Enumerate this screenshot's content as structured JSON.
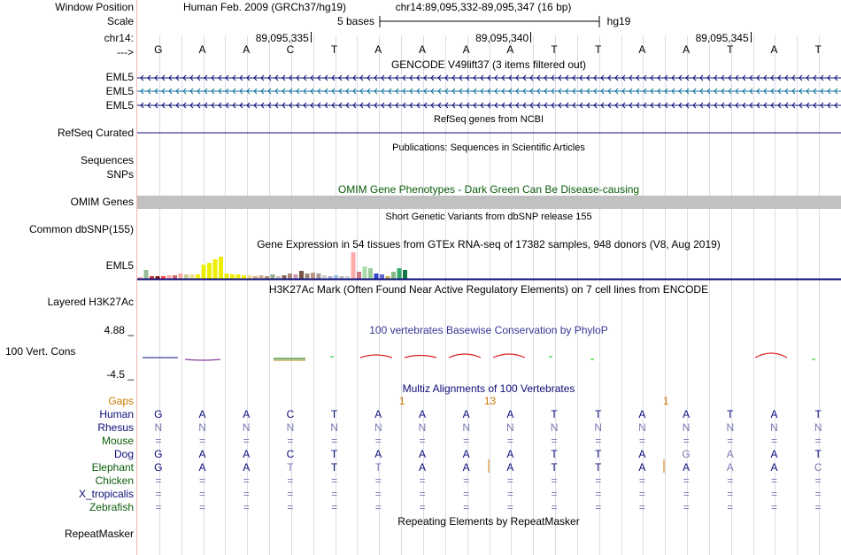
{
  "header": {
    "window_position_label": "Window Position",
    "assembly": "Human Feb. 2009 (GRCh37/hg19)",
    "position": "chr14:89,095,332-89,095,347 (16 bp)",
    "scale_label": "Scale",
    "scale_text": "5 bases",
    "scale_db": "hg19",
    "chrom_label": "chr14:",
    "coords": [
      "89,095,335",
      "89,095,340",
      "89,095,345"
    ],
    "strand_label": "--->",
    "sequence": [
      "G",
      "A",
      "A",
      "C",
      "T",
      "A",
      "A",
      "A",
      "A",
      "T",
      "T",
      "A",
      "A",
      "T",
      "A",
      "T"
    ]
  },
  "gencode": {
    "title": "GENCODE V49lift37 (3 items filtered out)",
    "rows": [
      {
        "label": "EML5",
        "color": "#0c0c78"
      },
      {
        "label": "EML5",
        "color": "#12709b"
      },
      {
        "label": "EML5",
        "color": "#0c0c78"
      }
    ]
  },
  "refseq": {
    "title": "RefSeq genes from NCBI",
    "label": "RefSeq Curated",
    "color": "#0c0c78"
  },
  "publications": {
    "title": "Publications: Sequences in Scientific Articles",
    "labels": [
      "Sequences",
      "SNPs"
    ]
  },
  "omim": {
    "title": "OMIM Gene Phenotypes - Dark Green Can Be Disease-causing",
    "label": "OMIM Genes",
    "color": "#0a5c0a"
  },
  "dbsnp": {
    "title": "Short Genetic Variants from dbSNP release 155",
    "label": "Common dbSNP(155)"
  },
  "gtex": {
    "title": "Gene Expression in 54 tissues from GTEx RNA-seq of 17382 samples, 948 donors (V8, Aug 2019)",
    "label": "EML5",
    "values": [
      2,
      10,
      3,
      3,
      3,
      4,
      4,
      6,
      5,
      5,
      5,
      16,
      18,
      22,
      25,
      6,
      5,
      5,
      4,
      4,
      3,
      4,
      3,
      5,
      3,
      4,
      6,
      5,
      9,
      6,
      7,
      6,
      4,
      3,
      4,
      3,
      3,
      30,
      8,
      14,
      12,
      6,
      5,
      3,
      8,
      12,
      10
    ],
    "colors": [
      "#ffaaaa",
      "#99bb99",
      "#cc3333",
      "#8b1a1a",
      "#ff4444",
      "#ffaaaa",
      "#cc6666",
      "#ffaa99",
      "#cccc99",
      "#eedd88",
      "#eeee00",
      "#eeee00",
      "#eeee00",
      "#eeee00",
      "#eeee00",
      "#eeee00",
      "#eeee00",
      "#eeee00",
      "#eeee00",
      "#eedd88",
      "#ccaa88",
      "#ccaa88",
      "#aa8866",
      "#99aa88",
      "#ccbbaa",
      "#886655",
      "#aa8877",
      "#cc99aa",
      "#775544",
      "#998877",
      "#bb9988",
      "#aa9999",
      "#cccccc",
      "#aaaacc",
      "#99bbdd",
      "#bbbbbb",
      "#cccccc",
      "#ffaaaa",
      "#cc7788",
      "#aaddaa",
      "#99cc99",
      "#3344cc",
      "#6666cc",
      "#ccaa44",
      "#88bb88",
      "#33aa66",
      "#117744"
    ]
  },
  "h3k27ac": {
    "title": "H3K27Ac Mark (Often Found Near Active Regulatory Elements) on 7 cell lines from ENCODE",
    "label": "Layered H3K27Ac"
  },
  "phylop": {
    "title": "100 vertebrates Basewise Conservation by PhyloP",
    "label": "100 Vert. Cons",
    "max": "4.88 _",
    "min": "-4.5 _"
  },
  "multiz": {
    "title": "Multiz Alignments of 100 Vertebrates",
    "gaps_label": "Gaps",
    "gap_marks": [
      {
        "text": "1",
        "base": 6
      },
      {
        "text": "13",
        "base": 8
      },
      {
        "text": "1",
        "base": 12
      }
    ],
    "species": [
      {
        "name": "Human",
        "color": "#0c0c78",
        "bases": [
          "G",
          "A",
          "A",
          "C",
          "T",
          "A",
          "A",
          "A",
          "A",
          "T",
          "T",
          "A",
          "A",
          "T",
          "A",
          "T"
        ]
      },
      {
        "name": "Rhesus",
        "color": "#0c0c78",
        "bases": [
          "N",
          "N",
          "N",
          "N",
          "N",
          "N",
          "N",
          "N",
          "N",
          "N",
          "N",
          "N",
          "N",
          "N",
          "N",
          "N"
        ]
      },
      {
        "name": "Mouse",
        "color": "#0a5c0a",
        "bases": [
          "=",
          "=",
          "=",
          "=",
          "=",
          "=",
          "=",
          "=",
          "=",
          "=",
          "=",
          "=",
          "=",
          "=",
          "=",
          "="
        ]
      },
      {
        "name": "Dog",
        "color": "#0c0c78",
        "bases": [
          "G",
          "A",
          "A",
          "C",
          "T",
          "A",
          "A",
          "A",
          "A",
          "T",
          "T",
          "A",
          "G",
          "A",
          "A",
          "T"
        ]
      },
      {
        "name": "Elephant",
        "color": "#0a5c0a",
        "bases": [
          "G",
          "A",
          "A",
          "T",
          "T",
          "T",
          "A",
          "A",
          "A",
          "T",
          "T",
          "A",
          "A",
          "A",
          "A",
          "C"
        ]
      },
      {
        "name": "Chicken",
        "color": "#0a5c0a",
        "bases": [
          "=",
          "=",
          "=",
          "=",
          "=",
          "=",
          "=",
          "=",
          "=",
          "=",
          "=",
          "=",
          "=",
          "=",
          "=",
          "="
        ]
      },
      {
        "name": "X_tropicalis",
        "color": "#0c0c78",
        "bases": [
          "=",
          "=",
          "=",
          "=",
          "=",
          "=",
          "=",
          "=",
          "=",
          "=",
          "=",
          "=",
          "=",
          "=",
          "=",
          "="
        ]
      },
      {
        "name": "Zebrafish",
        "color": "#0a5c0a",
        "bases": [
          "=",
          "=",
          "=",
          "=",
          "=",
          "=",
          "=",
          "=",
          "=",
          "=",
          "=",
          "=",
          "=",
          "=",
          "=",
          "="
        ]
      }
    ]
  },
  "repeatmasker": {
    "title": "Repeating Elements by RepeatMasker",
    "label": "RepeatMasker"
  }
}
